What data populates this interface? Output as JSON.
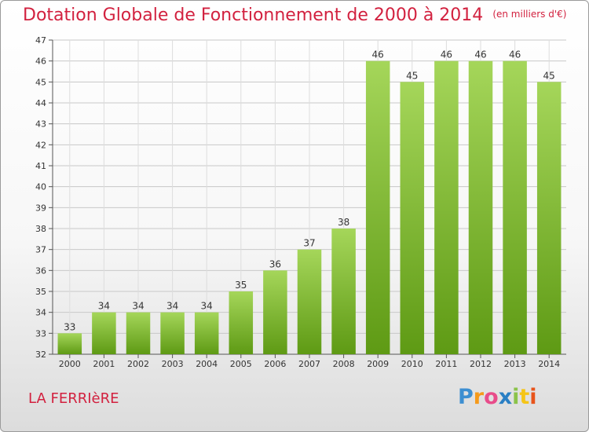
{
  "title": "Dotation Globale de Fonctionnement de 2000 à 2014",
  "unit": "(en milliers d'€)",
  "commune": "LA FERRIèRE",
  "logo": {
    "letters": [
      "P",
      "r",
      "o",
      "x",
      "i",
      "t",
      "i"
    ],
    "colors": [
      "#3d8fd1",
      "#f59a1b",
      "#e84c8a",
      "#2a7fc4",
      "#8bc34a",
      "#f5c518",
      "#e8541b"
    ]
  },
  "colors": {
    "bar_light": "#a5d65a",
    "bar_dark": "#5e9a14",
    "title": "#d2213f"
  },
  "chart_data": {
    "type": "bar",
    "categories": [
      "2000",
      "2001",
      "2002",
      "2003",
      "2004",
      "2005",
      "2006",
      "2007",
      "2008",
      "2009",
      "2010",
      "2011",
      "2012",
      "2013",
      "2014"
    ],
    "values": [
      33,
      34,
      34,
      34,
      34,
      35,
      36,
      37,
      38,
      46,
      45,
      46,
      46,
      46,
      45
    ],
    "ylim": [
      32,
      47
    ],
    "yticks": [
      32,
      33,
      34,
      35,
      36,
      37,
      38,
      39,
      40,
      41,
      42,
      43,
      44,
      45,
      46,
      47
    ],
    "grid": true
  }
}
